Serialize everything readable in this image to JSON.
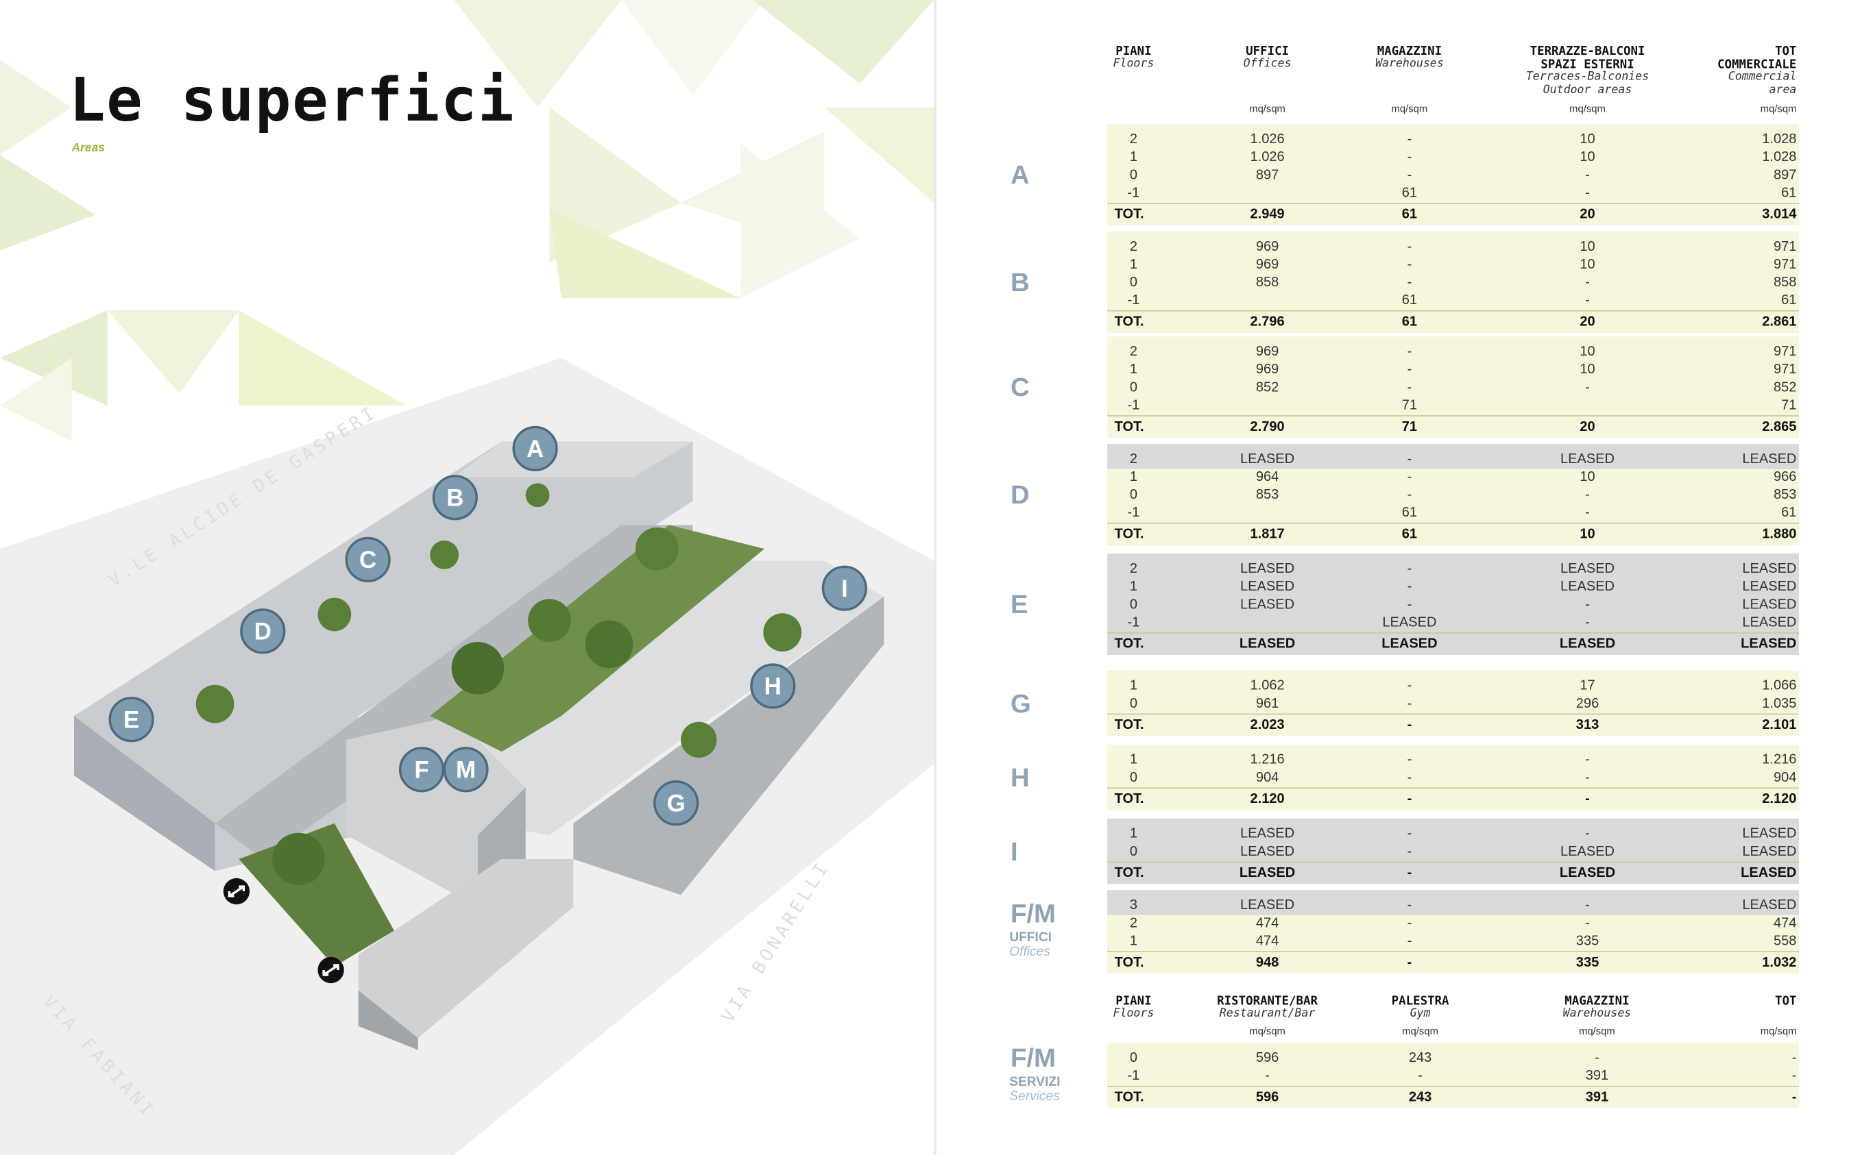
{
  "page": {
    "title": "Le superfici",
    "subtitle": "Areas"
  },
  "map": {
    "streets": [
      "V.LE ALCIDE DE GASPERI",
      "VIA FABIANI",
      "VIA BONARELLI"
    ],
    "building_labels": [
      "A",
      "B",
      "C",
      "D",
      "E",
      "F",
      "M",
      "G",
      "H",
      "I"
    ],
    "icons": [
      "entrance-icon",
      "entrance-icon"
    ]
  },
  "colors": {
    "row_bg": "#f6f6dc",
    "leased_bg": "#d9d9d9",
    "letter": "#8ea4b6",
    "accent": "#9cb53a"
  },
  "table1": {
    "headers": [
      {
        "title": [
          "PIANI"
        ],
        "sub": [
          "Floors"
        ],
        "unit": ""
      },
      {
        "title": [
          "UFFICI"
        ],
        "sub": [
          "Offices"
        ],
        "unit": "mq/sqm"
      },
      {
        "title": [
          "MAGAZZINI"
        ],
        "sub": [
          "Warehouses"
        ],
        "unit": "mq/sqm"
      },
      {
        "title": [
          "TERRAZZE-BALCONI",
          "SPAZI ESTERNI"
        ],
        "sub": [
          "Terraces-Balconies",
          "Outdoor areas"
        ],
        "unit": "mq/sqm"
      },
      {
        "title": [
          "TOT",
          "COMMERCIALE"
        ],
        "sub": [
          "Commercial",
          "area"
        ],
        "unit": "mq/sqm"
      }
    ],
    "blocks": [
      {
        "label": "A",
        "rows": [
          [
            "2",
            "1.026",
            "-",
            "10",
            "1.028"
          ],
          [
            "1",
            "1.026",
            "-",
            "10",
            "1.028"
          ],
          [
            "0",
            "897",
            "-",
            "-",
            "897"
          ],
          [
            "-1",
            "",
            "61",
            "-",
            "61"
          ]
        ],
        "tot": [
          "TOT.",
          "2.949",
          "61",
          "20",
          "3.014"
        ]
      },
      {
        "label": "B",
        "rows": [
          [
            "2",
            "969",
            "-",
            "10",
            "971"
          ],
          [
            "1",
            "969",
            "-",
            "10",
            "971"
          ],
          [
            "0",
            "858",
            "-",
            "-",
            "858"
          ],
          [
            "-1",
            "",
            "61",
            "-",
            "61"
          ]
        ],
        "tot": [
          "TOT.",
          "2.796",
          "61",
          "20",
          "2.861"
        ]
      },
      {
        "label": "C",
        "rows": [
          [
            "2",
            "969",
            "-",
            "10",
            "971"
          ],
          [
            "1",
            "969",
            "-",
            "10",
            "971"
          ],
          [
            "0",
            "852",
            "-",
            "-",
            "852"
          ],
          [
            "-1",
            "",
            "71",
            "",
            "71"
          ]
        ],
        "tot": [
          "TOT.",
          "2.790",
          "71",
          "20",
          "2.865"
        ]
      },
      {
        "label": "D",
        "rows": [
          [
            "2",
            "LEASED",
            "-",
            "LEASED",
            "LEASED"
          ],
          [
            "1",
            "964",
            "-",
            "10",
            "966"
          ],
          [
            "0",
            "853",
            "-",
            "-",
            "853"
          ],
          [
            "-1",
            "",
            "61",
            "-",
            "61"
          ]
        ],
        "tot": [
          "TOT.",
          "1.817",
          "61",
          "10",
          "1.880"
        ]
      },
      {
        "label": "E",
        "rows": [
          [
            "2",
            "LEASED",
            "-",
            "LEASED",
            "LEASED"
          ],
          [
            "1",
            "LEASED",
            "-",
            "LEASED",
            "LEASED"
          ],
          [
            "0",
            "LEASED",
            "-",
            "-",
            "LEASED"
          ],
          [
            "-1",
            "",
            "LEASED",
            "-",
            "LEASED"
          ]
        ],
        "tot": [
          "TOT.",
          "LEASED",
          "LEASED",
          "LEASED",
          "LEASED"
        ]
      },
      {
        "label": "G",
        "rows": [
          [
            "1",
            "1.062",
            "-",
            "17",
            "1.066"
          ],
          [
            "0",
            "961",
            "-",
            "296",
            "1.035"
          ]
        ],
        "tot": [
          "TOT.",
          "2.023",
          "-",
          "313",
          "2.101"
        ]
      },
      {
        "label": "H",
        "rows": [
          [
            "1",
            "1.216",
            "-",
            "-",
            "1.216"
          ],
          [
            "0",
            "904",
            "-",
            "-",
            "904"
          ]
        ],
        "tot": [
          "TOT.",
          "2.120",
          "-",
          "-",
          "2.120"
        ]
      },
      {
        "label": "I",
        "rows": [
          [
            "1",
            "LEASED",
            "-",
            "-",
            "LEASED"
          ],
          [
            "0",
            "LEASED",
            "-",
            "LEASED",
            "LEASED"
          ]
        ],
        "tot": [
          "TOT.",
          "LEASED",
          "-",
          "LEASED",
          "LEASED"
        ]
      },
      {
        "label": "F/M",
        "sublabel": "UFFICI",
        "sublabel_en": "Offices",
        "rows": [
          [
            "3",
            "LEASED",
            "-",
            "-",
            "LEASED"
          ],
          [
            "2",
            "474",
            "-",
            "-",
            "474"
          ],
          [
            "1",
            "474",
            "-",
            "335",
            "558"
          ]
        ],
        "tot": [
          "TOT.",
          "948",
          "-",
          "335",
          "1.032"
        ]
      }
    ]
  },
  "table2": {
    "headers": [
      {
        "title": [
          "PIANI"
        ],
        "sub": [
          "Floors"
        ],
        "unit": ""
      },
      {
        "title": [
          "RISTORANTE/BAR"
        ],
        "sub": [
          "Restaurant/Bar"
        ],
        "unit": "mq/sqm"
      },
      {
        "title": [
          "PALESTRA"
        ],
        "sub": [
          "Gym"
        ],
        "unit": "mq/sqm"
      },
      {
        "title": [
          "MAGAZZINI"
        ],
        "sub": [
          "Warehouses"
        ],
        "unit": "mq/sqm"
      },
      {
        "title": [
          "TOT"
        ],
        "sub": [],
        "unit": "mq/sqm"
      }
    ],
    "blocks": [
      {
        "label": "F/M",
        "sublabel": "SERVIZI",
        "sublabel_en": "Services",
        "rows": [
          [
            "0",
            "596",
            "243",
            "-",
            "-"
          ],
          [
            "-1",
            "-",
            "-",
            "391",
            "-"
          ]
        ],
        "tot": [
          "TOT.",
          "596",
          "243",
          "391",
          "-"
        ]
      }
    ]
  }
}
